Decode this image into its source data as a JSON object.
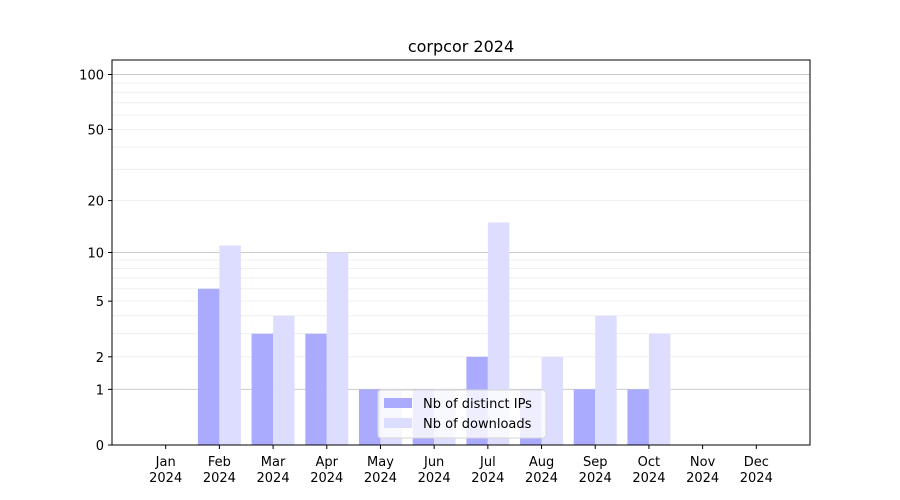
{
  "chart_data": {
    "type": "bar",
    "title": "corpcor 2024",
    "categories": [
      "Jan\n2024",
      "Feb\n2024",
      "Mar\n2024",
      "Apr\n2024",
      "May\n2024",
      "Jun\n2024",
      "Jul\n2024",
      "Aug\n2024",
      "Sep\n2024",
      "Oct\n2024",
      "Nov\n2024",
      "Dec\n2024"
    ],
    "series": [
      {
        "name": "Nb of distinct IPs",
        "color": "#aaaaff",
        "values": [
          0,
          6,
          3,
          3,
          1,
          1,
          2,
          1,
          1,
          1,
          0,
          0
        ]
      },
      {
        "name": "Nb of downloads",
        "color": "#ddddff",
        "values": [
          0,
          11,
          4,
          10,
          1,
          1,
          15,
          2,
          4,
          3,
          0,
          0
        ]
      }
    ],
    "y_scale": "log(1+y)",
    "ylim": [
      0,
      120
    ],
    "y_ticks": [
      0,
      1,
      2,
      5,
      10,
      20,
      50,
      100
    ],
    "grid": true,
    "legend_position": "lower center"
  }
}
